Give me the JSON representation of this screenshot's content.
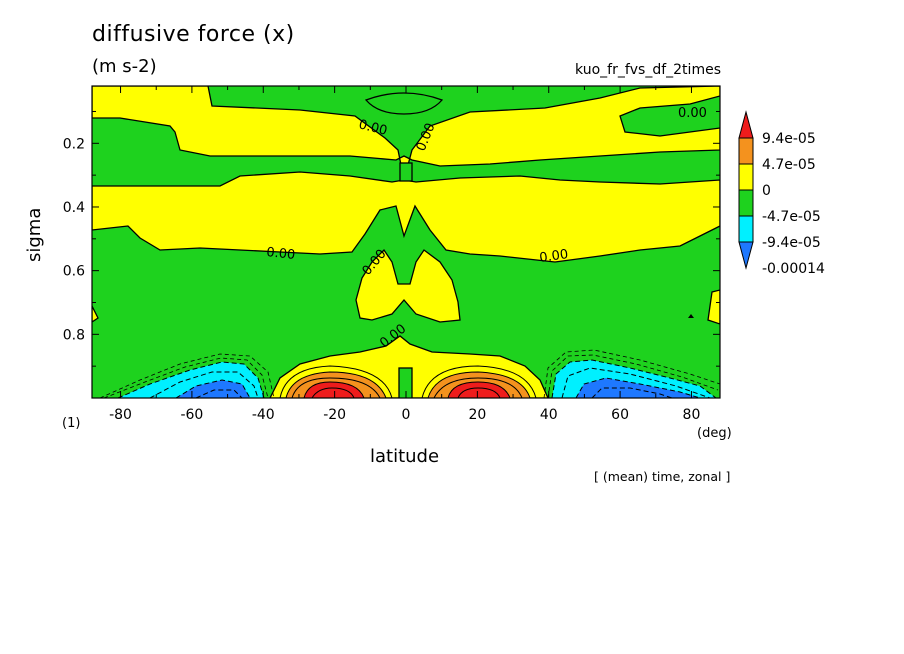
{
  "title": "diffusive force (x)",
  "units": "(m s-2)",
  "experiment": "kuo_fr_fvs_df_2times",
  "panel_label": "(1)",
  "x_unit": "(deg)",
  "note": "[ (mean) time, zonal ]",
  "colors": {
    "red": "#ee1c1c",
    "orange": "#f4921e",
    "yellow": "#ffff00",
    "green": "#1ed21e",
    "cyan": "#00f0ff",
    "blue": "#1e78ff"
  },
  "chart_data": {
    "type": "heatmap",
    "title": "diffusive force (x)",
    "subtitle": "(m s-2)",
    "xlabel": "latitude",
    "ylabel": "sigma",
    "xlim": [
      -88,
      88
    ],
    "ylim": [
      1.0,
      0.02
    ],
    "x_ticks": [
      -80,
      -60,
      -40,
      -20,
      0,
      20,
      40,
      60,
      80
    ],
    "x_tick_labels": [
      "-80",
      "-60",
      "-40",
      "-20",
      "0",
      "20",
      "40",
      "60",
      "80"
    ],
    "y_ticks": [
      0.2,
      0.4,
      0.6,
      0.8
    ],
    "y_tick_labels": [
      "0.2",
      "0.4",
      "0.6",
      "0.8"
    ],
    "contour_labels": [
      "0.00",
      "0.00",
      "0.00",
      "0.00",
      "0.00",
      "0.00",
      "0.00",
      "0.00"
    ],
    "colorbar": {
      "levels": [
        "9.4e-05",
        "4.7e-05",
        "0",
        "-4.7e-05",
        "-9.4e-05",
        "-0.00014"
      ],
      "colors": [
        "#ee1c1c",
        "#f4921e",
        "#ffff00",
        "#1ed21e",
        "#00f0ff",
        "#1e78ff"
      ]
    },
    "features": [
      {
        "name": "positive maximum SH",
        "lat": -20,
        "sigma": 0.97,
        "sign": "positive"
      },
      {
        "name": "positive maximum NH",
        "lat": 20,
        "sigma": 0.97,
        "sign": "positive"
      },
      {
        "name": "negative minimum SH",
        "lat": -52,
        "sigma": 0.97,
        "sign": "negative"
      },
      {
        "name": "negative minimum NH",
        "lat": 58,
        "sigma": 0.97,
        "sign": "negative"
      }
    ]
  }
}
